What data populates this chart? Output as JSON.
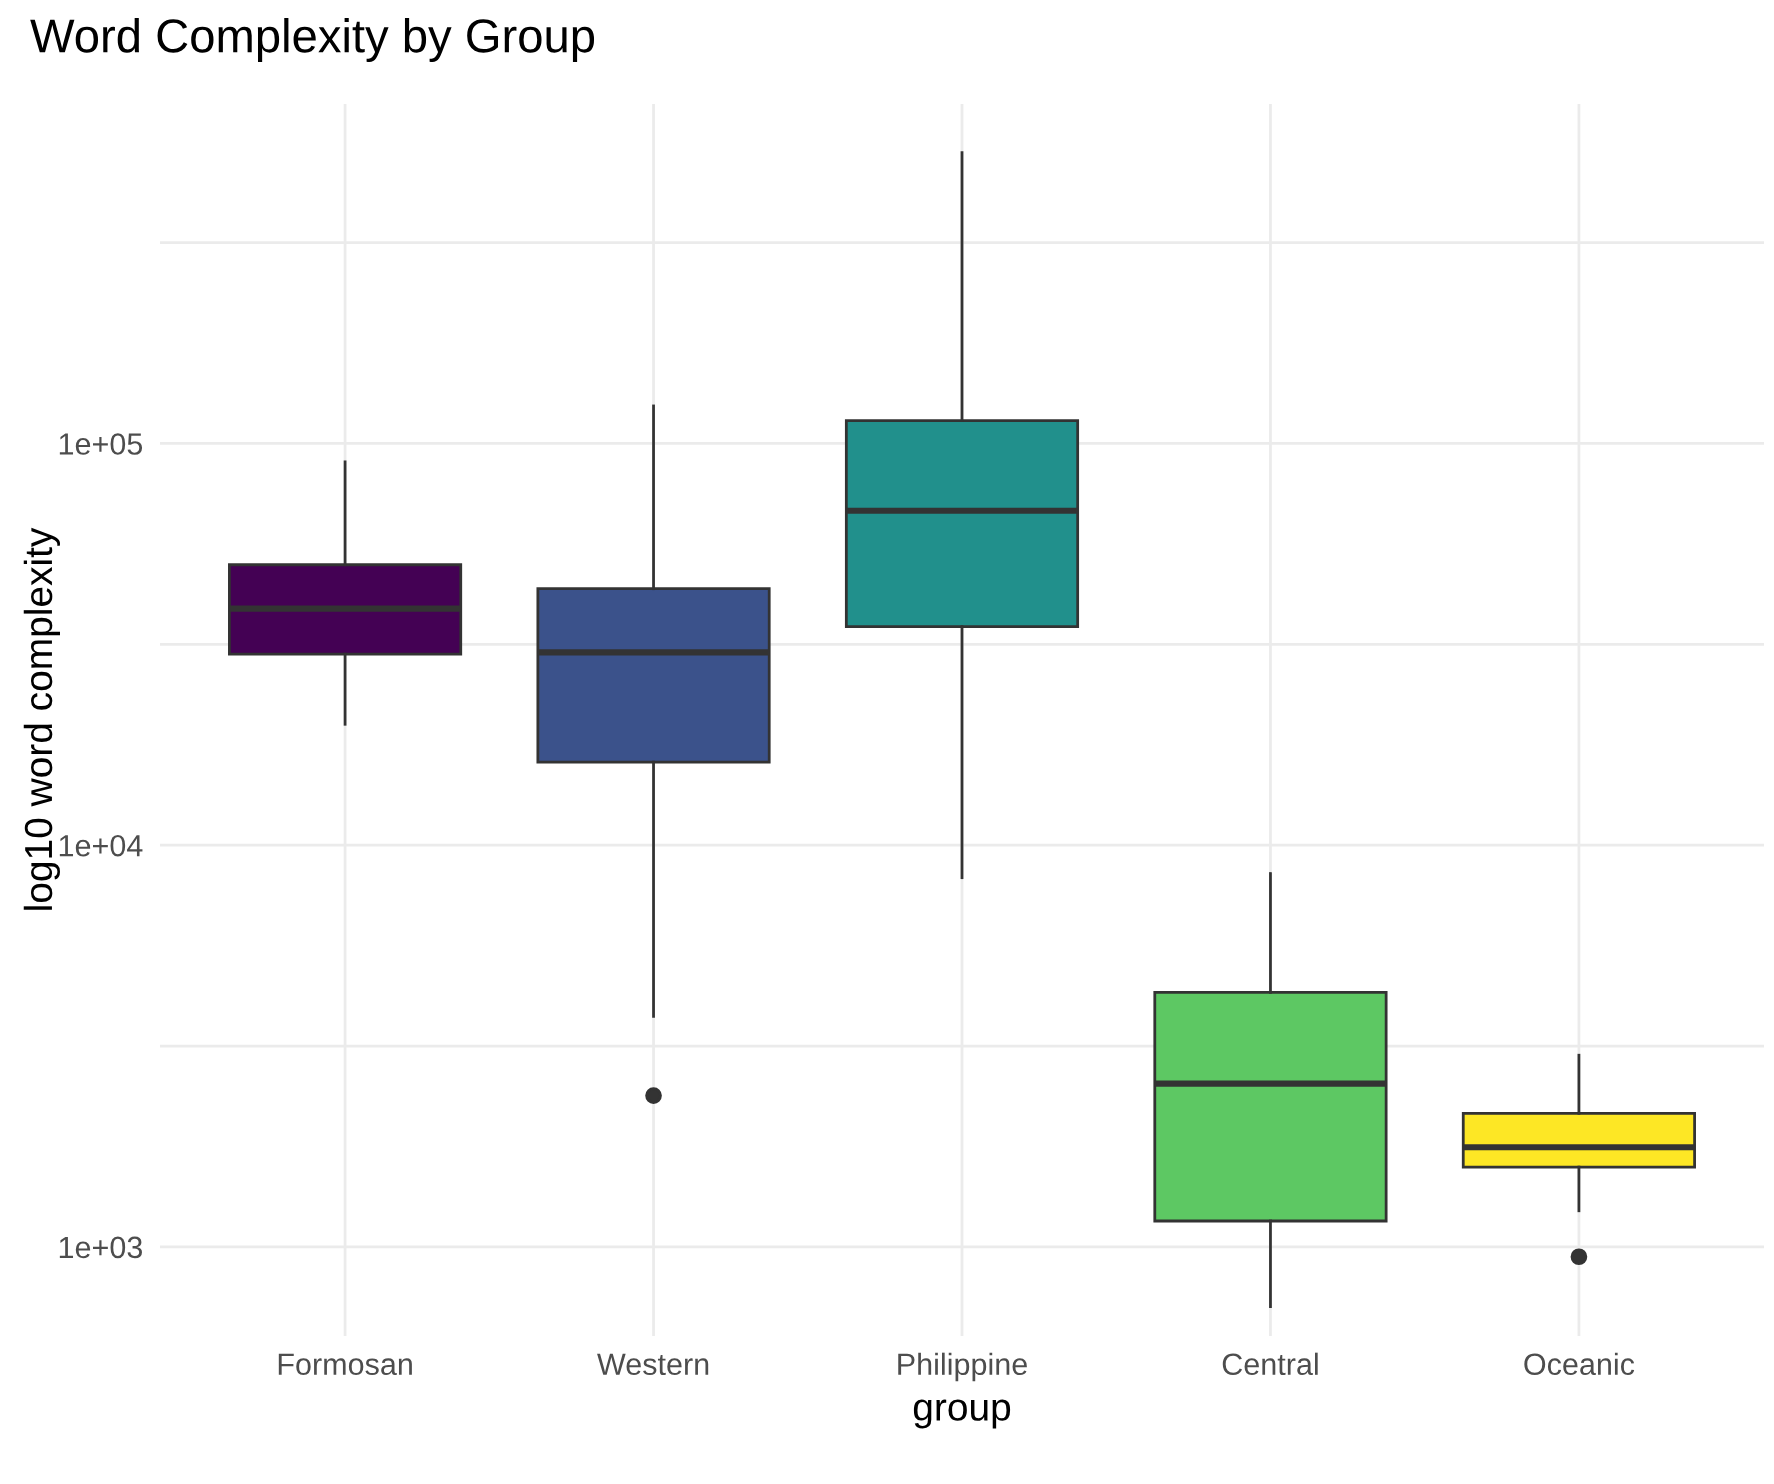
{
  "chart_data": {
    "type": "box",
    "title": "Word Complexity by Group",
    "xlabel": "group",
    "ylabel": "log10 word complexity",
    "categories": [
      "Formosan",
      "Western",
      "Philippine",
      "Central",
      "Oceanic"
    ],
    "series": [
      {
        "colors": [
          "#440154",
          "#3b528b",
          "#21908c",
          "#5dc863",
          "#fde725"
        ],
        "boxes": [
          {
            "low": 20000,
            "q1": 29900,
            "median": 38800,
            "q3": 49900,
            "high": 90000
          },
          {
            "low": 3750,
            "q1": 16100,
            "median": 30200,
            "q3": 43500,
            "high": 124000,
            "outliers": [
              2380
            ]
          },
          {
            "low": 8300,
            "q1": 35000,
            "median": 68000,
            "q3": 114000,
            "high": 530000
          },
          {
            "low": 710,
            "q1": 1160,
            "median": 2550,
            "q3": 4300,
            "high": 8500
          },
          {
            "low": 1230,
            "q1": 1580,
            "median": 1770,
            "q3": 2150,
            "high": 3000,
            "outliers": [
              945
            ]
          }
        ]
      }
    ],
    "log": "y",
    "ylim": [
      600,
      700000
    ],
    "yticks": [
      {
        "value": 1000,
        "label": "1e+03"
      },
      {
        "value": 3162,
        "label": null
      },
      {
        "value": 10000,
        "label": "1e+04"
      },
      {
        "value": 31623,
        "label": null
      },
      {
        "value": 100000,
        "label": "1e+05"
      },
      {
        "value": 316228,
        "label": null
      }
    ],
    "grid": true
  }
}
